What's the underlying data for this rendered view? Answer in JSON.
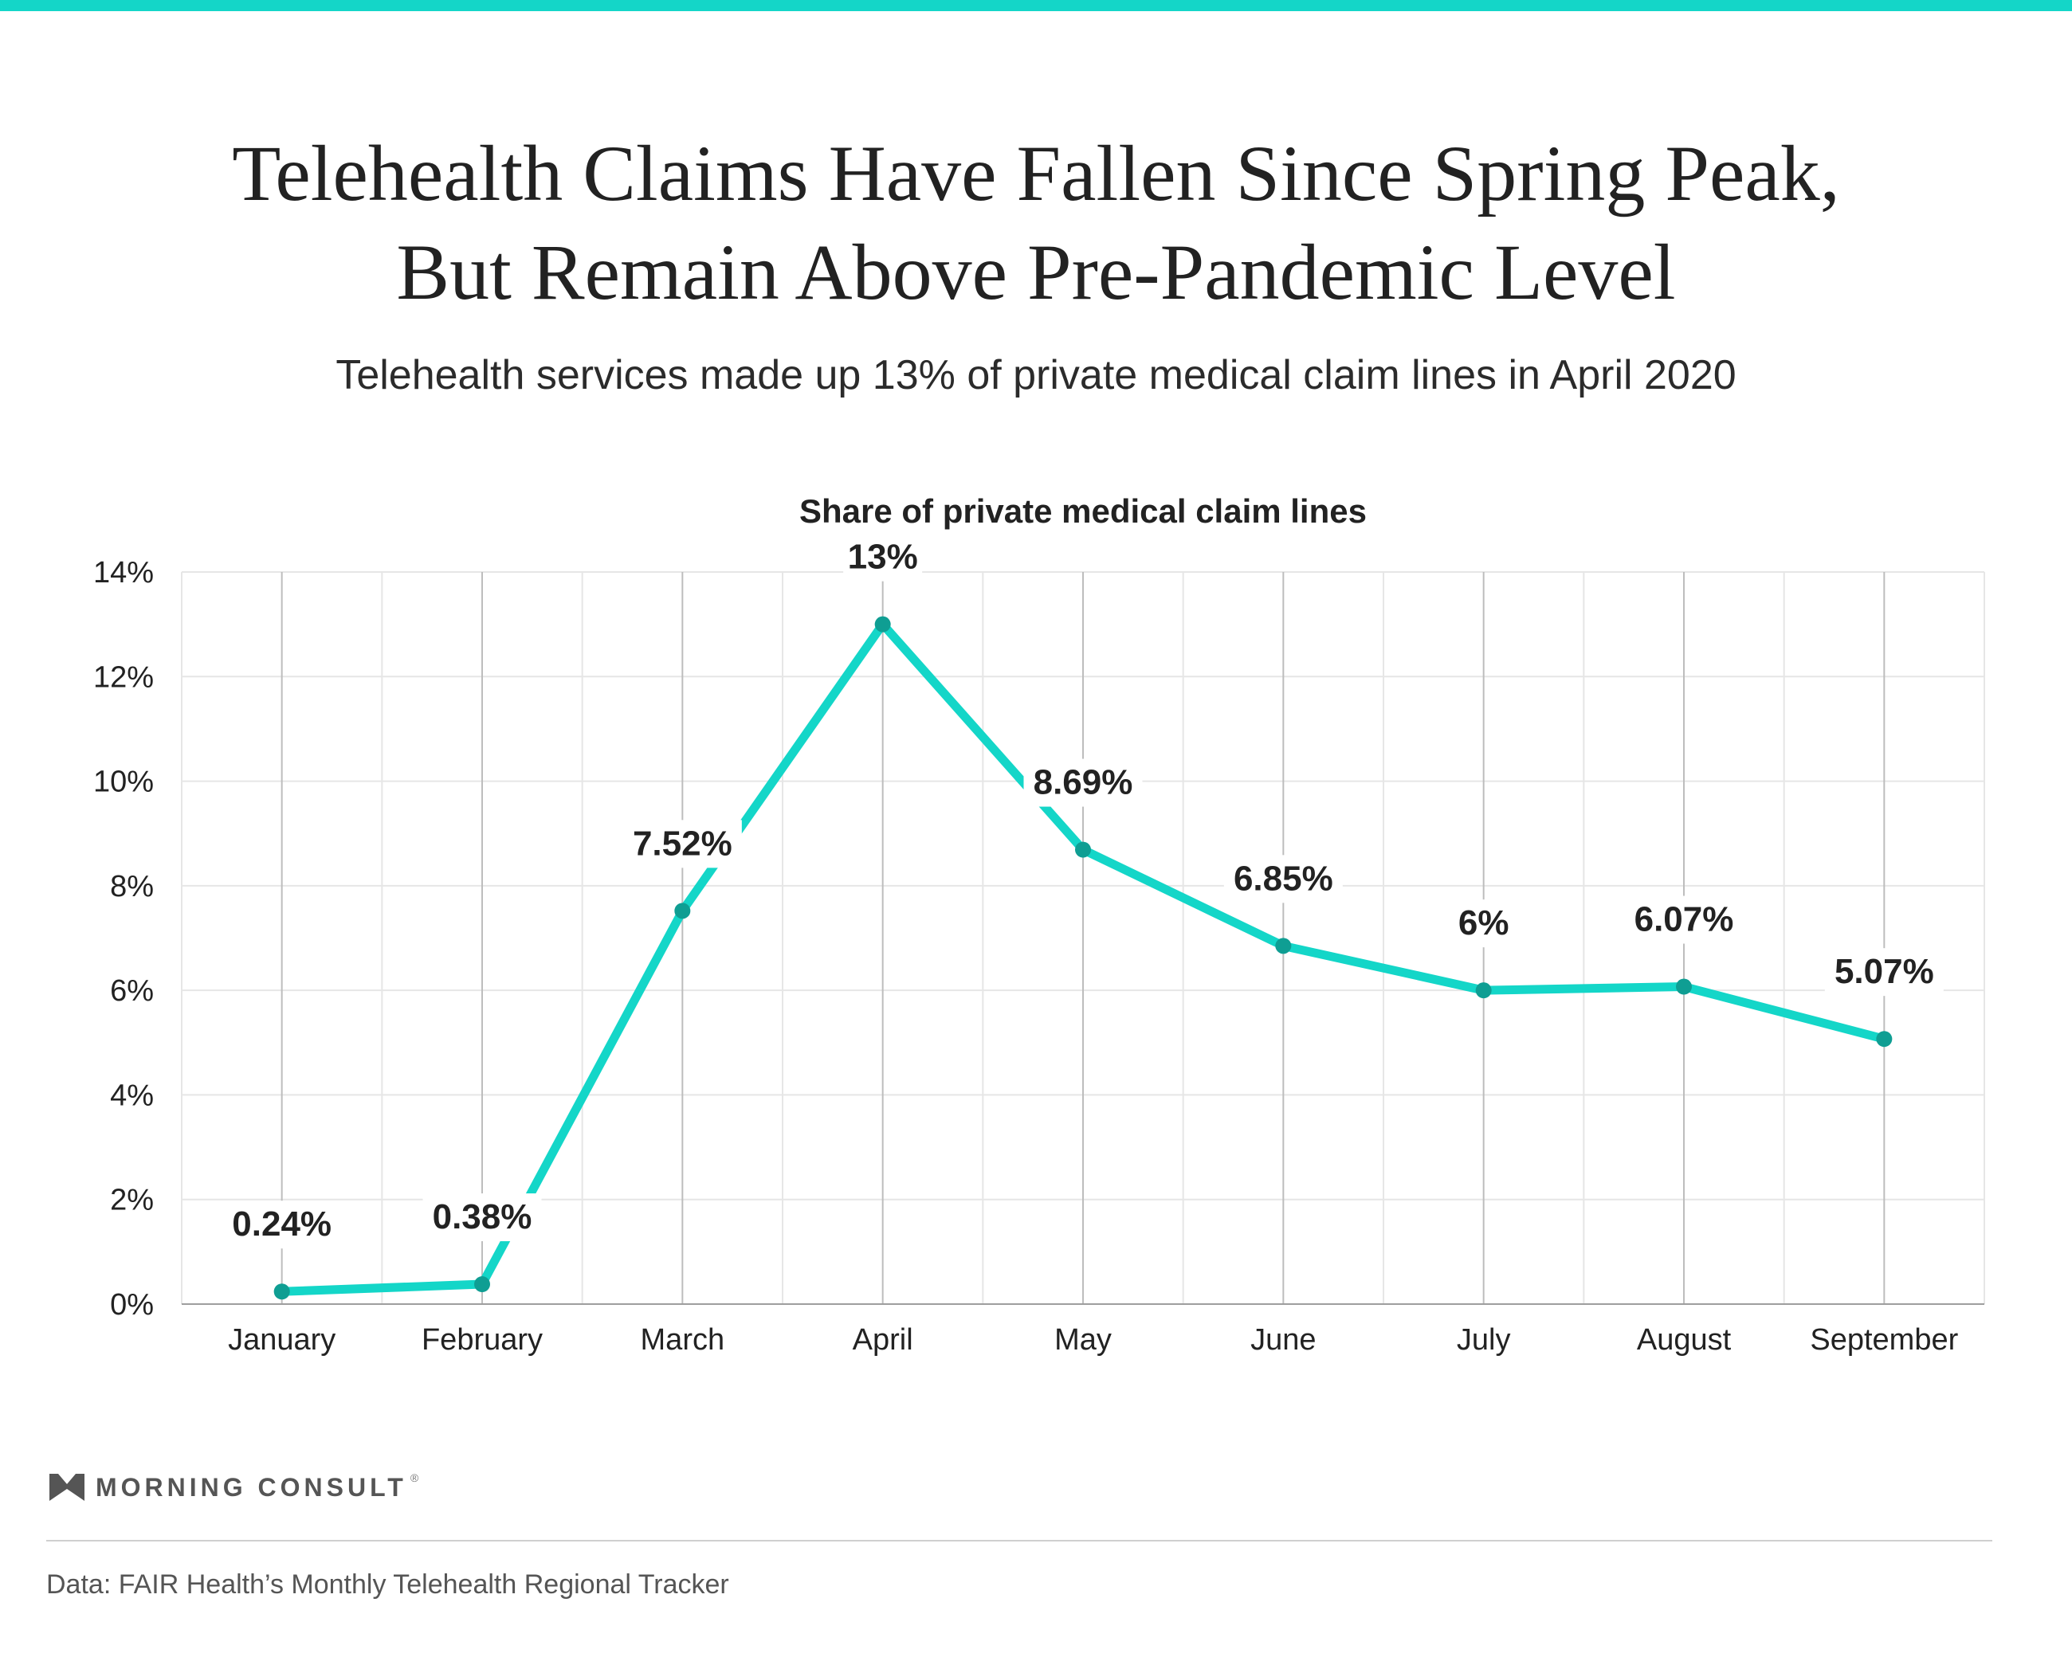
{
  "header": {
    "title_line1": "Telehealth Claims Have Fallen Since Spring Peak,",
    "title_line2": "But Remain Above Pre-Pandemic Level",
    "subtitle": "Telehealth services made up 13% of private medical claim lines in April 2020"
  },
  "colors": {
    "accent": "#14d6c8",
    "marker": "#0f9e93",
    "text": "#222222",
    "grid": "#e6e6e6",
    "major_grid": "#bdbdbd"
  },
  "chart_data": {
    "type": "line",
    "title": "Share of private medical claim lines",
    "categories": [
      "January",
      "February",
      "March",
      "April",
      "May",
      "June",
      "July",
      "August",
      "September"
    ],
    "series": [
      {
        "values": [
          0.24,
          0.38,
          7.52,
          13,
          8.69,
          6.85,
          6,
          6.07,
          5.07
        ]
      }
    ],
    "data_labels": [
      "0.24%",
      "0.38%",
      "7.52%",
      "13%",
      "8.69%",
      "6.85%",
      "6%",
      "6.07%",
      "5.07%"
    ],
    "ylim": [
      0,
      14
    ],
    "yticks": [
      0,
      2,
      4,
      6,
      8,
      10,
      12,
      14
    ],
    "ytick_labels": [
      "0%",
      "2%",
      "4%",
      "6%",
      "8%",
      "10%",
      "12%",
      "14%"
    ],
    "xlabel": "",
    "ylabel": "",
    "grid": true,
    "legend": "none"
  },
  "footer": {
    "brand": "MORNING CONSULT",
    "brand_mark": "®",
    "source": "Data: FAIR Health’s Monthly Telehealth Regional Tracker"
  }
}
